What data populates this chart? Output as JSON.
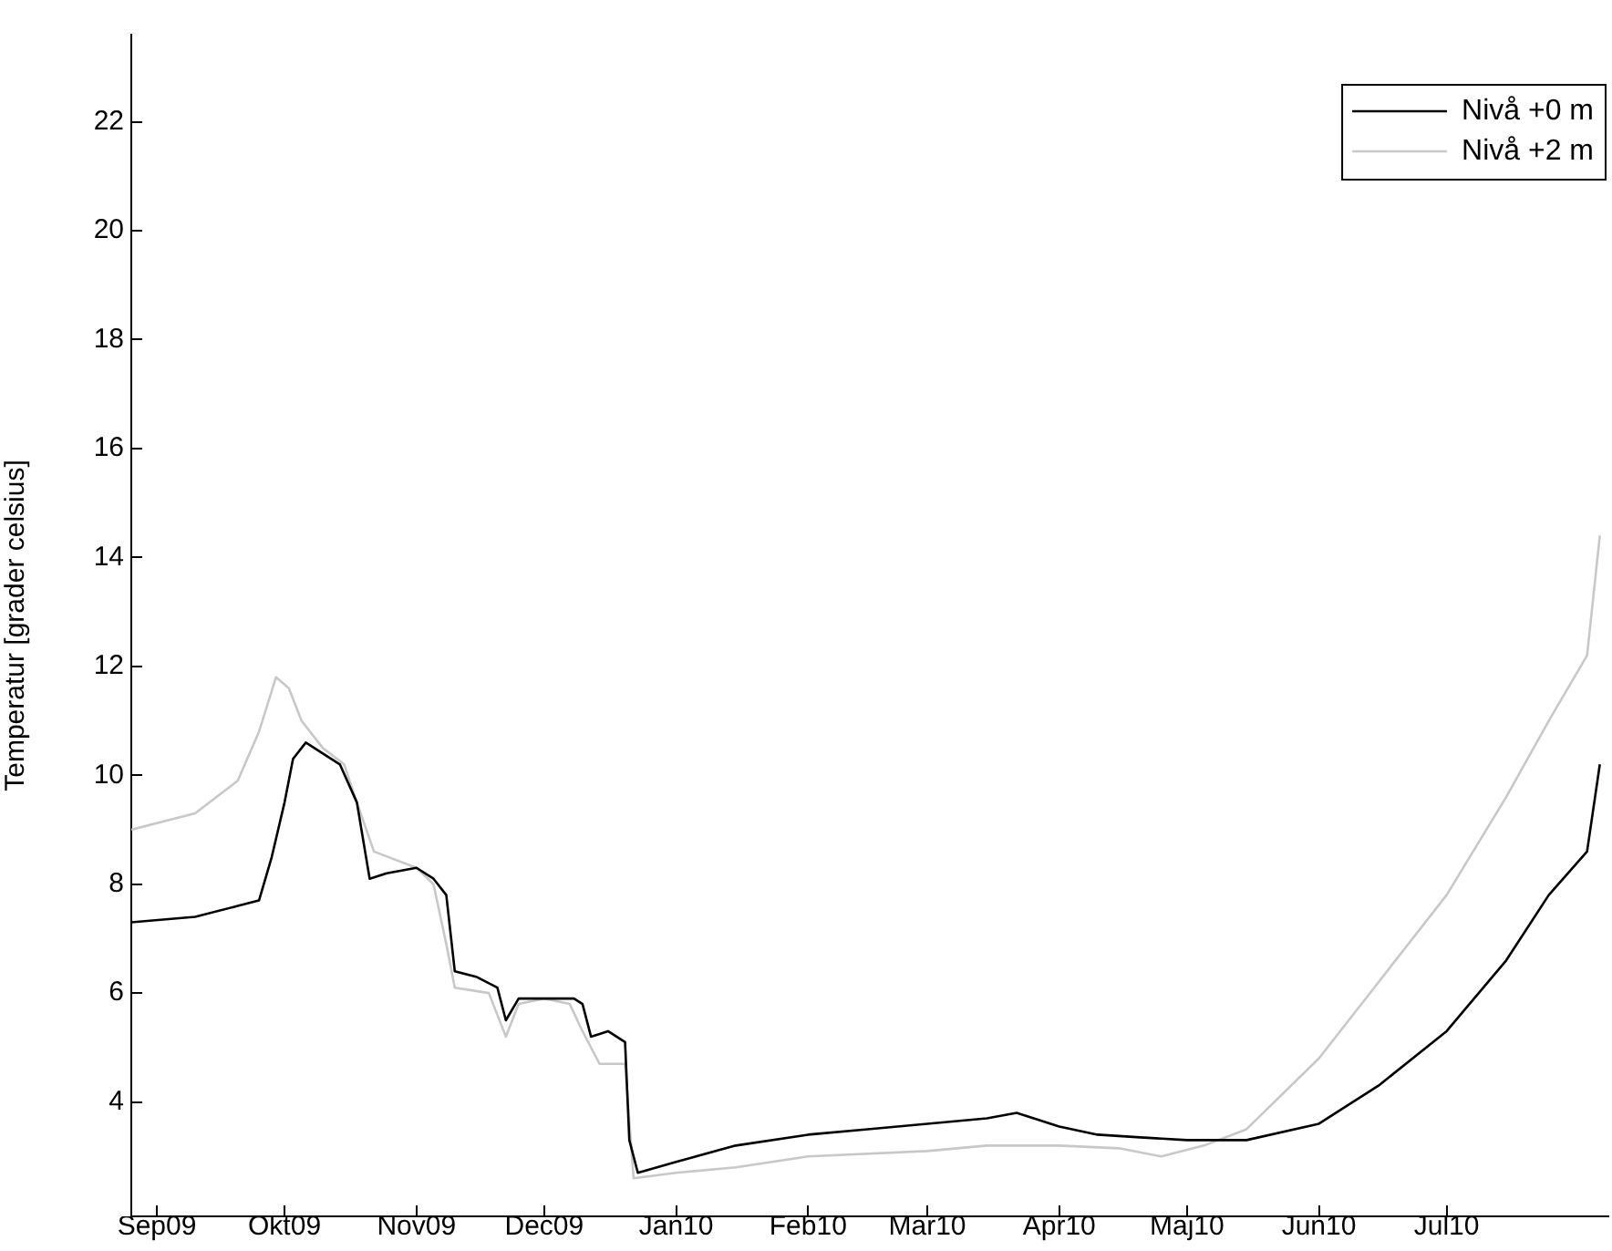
{
  "chart_data": {
    "type": "line",
    "ylabel": "Temperatur [grader celsius]",
    "legend": "top right",
    "grid": false,
    "marker": "none",
    "line_style": "solid",
    "xlim": [
      "2009-08-26",
      "2010-08-08"
    ],
    "xticks": [
      {
        "value": "2009-09-01",
        "label": "Sep09"
      },
      {
        "value": "2009-10-01",
        "label": "Okt09"
      },
      {
        "value": "2009-11-01",
        "label": "Nov09"
      },
      {
        "value": "2009-12-01",
        "label": "Dec09"
      },
      {
        "value": "2010-01-01",
        "label": "Jan10"
      },
      {
        "value": "2010-02-01",
        "label": "Feb10"
      },
      {
        "value": "2010-03-01",
        "label": "Mar10"
      },
      {
        "value": "2010-04-01",
        "label": "Apr10"
      },
      {
        "value": "2010-05-01",
        "label": "Maj10"
      },
      {
        "value": "2010-06-01",
        "label": "Jun10"
      },
      {
        "value": "2010-07-01",
        "label": "Jul10"
      }
    ],
    "ylim": [
      1.9,
      23.6
    ],
    "yticks": [
      4,
      6,
      8,
      10,
      12,
      14,
      16,
      18,
      20,
      22
    ],
    "series": [
      {
        "name": "Nivå +0 m",
        "color": "#000000",
        "x": [
          "2009-08-26",
          "2009-09-10",
          "2009-09-20",
          "2009-09-25",
          "2009-09-28",
          "2009-10-01",
          "2009-10-03",
          "2009-10-06",
          "2009-10-10",
          "2009-10-14",
          "2009-10-18",
          "2009-10-21",
          "2009-10-25",
          "2009-11-01",
          "2009-11-05",
          "2009-11-08",
          "2009-11-10",
          "2009-11-15",
          "2009-11-20",
          "2009-11-22",
          "2009-11-25",
          "2009-12-01",
          "2009-12-08",
          "2009-12-10",
          "2009-12-12",
          "2009-12-16",
          "2009-12-20",
          "2009-12-21",
          "2009-12-23",
          "2010-01-01",
          "2010-01-15",
          "2010-02-01",
          "2010-02-15",
          "2010-03-01",
          "2010-03-15",
          "2010-03-22",
          "2010-04-01",
          "2010-04-10",
          "2010-04-20",
          "2010-05-01",
          "2010-05-15",
          "2010-06-01",
          "2010-06-15",
          "2010-07-01",
          "2010-07-15",
          "2010-07-25",
          "2010-08-03",
          "2010-08-06"
        ],
        "values": [
          7.3,
          7.4,
          7.6,
          7.7,
          8.5,
          9.5,
          10.3,
          10.6,
          10.4,
          10.2,
          9.5,
          8.1,
          8.2,
          8.3,
          8.1,
          7.8,
          6.4,
          6.3,
          6.1,
          5.5,
          5.9,
          5.9,
          5.9,
          5.8,
          5.2,
          5.3,
          5.1,
          3.3,
          2.7,
          2.9,
          3.2,
          3.4,
          3.5,
          3.6,
          3.7,
          3.8,
          3.55,
          3.4,
          3.35,
          3.3,
          3.3,
          3.6,
          4.3,
          5.3,
          6.6,
          7.8,
          8.6,
          10.2
        ]
      },
      {
        "name": "Nivå +2 m",
        "color": "#c8c8c8",
        "x": [
          "2009-08-26",
          "2009-09-10",
          "2009-09-20",
          "2009-09-25",
          "2009-09-29",
          "2009-10-02",
          "2009-10-05",
          "2009-10-10",
          "2009-10-15",
          "2009-10-18",
          "2009-10-22",
          "2009-11-01",
          "2009-11-05",
          "2009-11-08",
          "2009-11-10",
          "2009-11-18",
          "2009-11-22",
          "2009-11-25",
          "2009-12-01",
          "2009-12-07",
          "2009-12-10",
          "2009-12-14",
          "2009-12-20",
          "2009-12-22",
          "2010-01-01",
          "2010-01-15",
          "2010-02-01",
          "2010-03-01",
          "2010-03-15",
          "2010-04-01",
          "2010-04-15",
          "2010-04-25",
          "2010-05-05",
          "2010-05-15",
          "2010-06-01",
          "2010-06-15",
          "2010-07-01",
          "2010-07-15",
          "2010-07-25",
          "2010-08-03",
          "2010-08-06"
        ],
        "values": [
          9.0,
          9.3,
          9.9,
          10.8,
          11.8,
          11.6,
          11.0,
          10.5,
          10.2,
          9.5,
          8.6,
          8.3,
          8.0,
          6.9,
          6.1,
          6.0,
          5.2,
          5.8,
          5.9,
          5.8,
          5.3,
          4.7,
          4.7,
          2.6,
          2.7,
          2.8,
          3.0,
          3.1,
          3.2,
          3.2,
          3.15,
          3.0,
          3.2,
          3.5,
          4.8,
          6.2,
          7.8,
          9.6,
          11.0,
          12.2,
          14.4
        ]
      }
    ]
  }
}
